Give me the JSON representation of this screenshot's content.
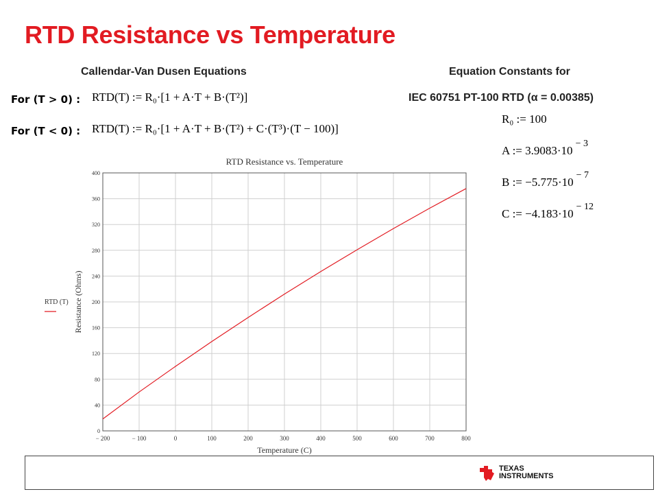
{
  "title": "RTD Resistance vs Temperature",
  "equations": {
    "heading": "Callendar-Van Dusen Equations",
    "cond_positive": "For (T > 0) :",
    "cond_negative": "For (T < 0) :",
    "eq_positive": "RTD(T) := R₀·[1 + A·T + B·(T²)]",
    "eq_negative": "RTD(T) := R₀·[1 + A·T + B·(T²) + C·(T³)·(T − 100)]"
  },
  "constants": {
    "heading_line1": "Equation Constants for",
    "heading_line2": "IEC 60751 PT-100 RTD (α = 0.00385)",
    "r0": "R₀ := 100",
    "a_base": "A := 3.9083·10",
    "a_exp": "− 3",
    "b_base": "B := −5.775·10",
    "b_exp": "− 7",
    "c_base": "C := −4.183·10",
    "c_exp": "− 12"
  },
  "chart_data": {
    "type": "line",
    "title": "RTD Resistance vs. Temperature",
    "xlabel": "Temperature (C)",
    "ylabel": "Resistance (Ohms)",
    "legend": "RTD (T)",
    "legend_position": "left",
    "grid": true,
    "xlim": [
      -200,
      800
    ],
    "ylim": [
      0,
      400
    ],
    "xticks": [
      "− 200",
      "− 100",
      "0",
      "100",
      "200",
      "300",
      "400",
      "500",
      "600",
      "700",
      "800"
    ],
    "yticks": [
      "0",
      "40",
      "80",
      "120",
      "160",
      "200",
      "240",
      "280",
      "320",
      "360",
      "400"
    ],
    "color": "#e21b22",
    "series": [
      {
        "name": "RTD (T)",
        "x": [
          -200,
          -100,
          0,
          100,
          200,
          300,
          400,
          500,
          600,
          700,
          800
        ],
        "y": [
          18.5,
          60.3,
          100,
          138.5,
          175.9,
          212.1,
          247.1,
          280.9,
          313.7,
          345.3,
          375.7
        ]
      }
    ]
  },
  "footer": {
    "brand_line1": "TEXAS",
    "brand_line2": "INSTRUMENTS",
    "logo_color": "#e21b22"
  }
}
